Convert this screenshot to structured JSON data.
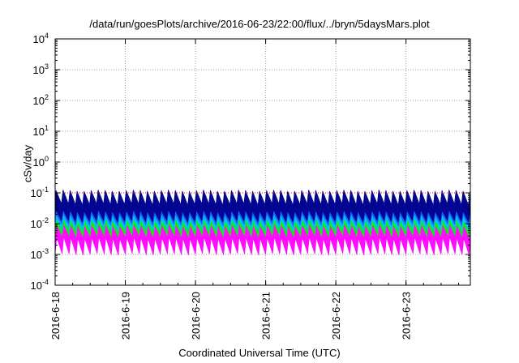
{
  "chart_data": {
    "type": "area",
    "title": "/data/run/goesPlots/archive/2016-06-23/22:00/flux/../bryn/5daysMars.plot",
    "xlabel": "Coordinated Universal Time (UTC)",
    "ylabel": "cSv/day",
    "y_scale": "log",
    "ylim": [
      0.0001,
      10000
    ],
    "y_ticks": [
      {
        "value": 0.0001,
        "base": "10",
        "exp": "-4"
      },
      {
        "value": 0.001,
        "base": "10",
        "exp": "-3"
      },
      {
        "value": 0.01,
        "base": "10",
        "exp": "-2"
      },
      {
        "value": 0.1,
        "base": "10",
        "exp": "-1"
      },
      {
        "value": 1,
        "base": "10",
        "exp": "0"
      },
      {
        "value": 10,
        "base": "10",
        "exp": "1"
      },
      {
        "value": 100,
        "base": "10",
        "exp": "2"
      },
      {
        "value": 1000,
        "base": "10",
        "exp": "3"
      },
      {
        "value": 10000,
        "base": "10",
        "exp": "4"
      }
    ],
    "xlim": [
      "2016-06-18",
      "2016-06-23 22:00"
    ],
    "x_ticks": [
      "2016-6-18",
      "2016-6-19",
      "2016-6-20",
      "2016-6-21",
      "2016-6-22",
      "2016-6-23"
    ],
    "grid": true,
    "threshold_line": 0.1,
    "bands": [
      {
        "color": "#ff00ff",
        "low": 0.001,
        "high": 0.035
      },
      {
        "color": "#00ff00",
        "low": 0.004,
        "high": 0.05
      },
      {
        "color": "#00bfff",
        "low": 0.006,
        "high": 0.065
      },
      {
        "color": "#1a5cff",
        "low": 0.009,
        "high": 0.09
      },
      {
        "color": "#00008b",
        "low": 0.012,
        "high": 0.12
      }
    ],
    "oscillation_period_hours": 2.4,
    "colors": {
      "grid": "#a0a0a0",
      "threshold": "#ff0000",
      "axes": "#000000"
    }
  }
}
